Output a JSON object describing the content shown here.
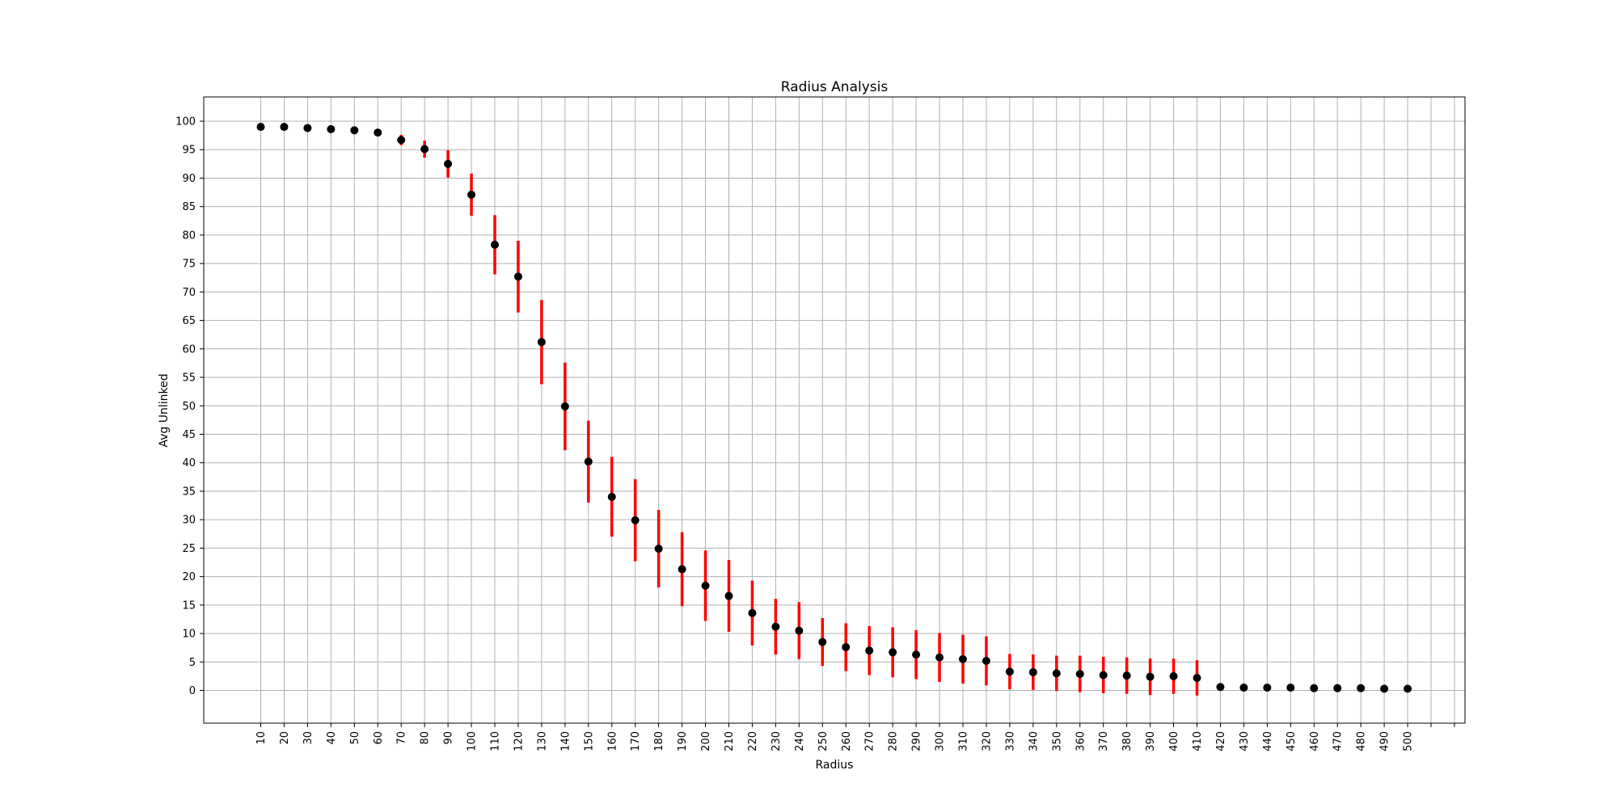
{
  "chart_data": {
    "type": "scatter",
    "title": "Radius Analysis",
    "xlabel": "Radius",
    "ylabel": "Avg Unlinked",
    "grid": true,
    "ylim": [
      -6,
      104
    ],
    "yticks": [
      0,
      5,
      10,
      15,
      20,
      25,
      30,
      35,
      40,
      45,
      50,
      55,
      60,
      65,
      70,
      75,
      80,
      85,
      90,
      95,
      100
    ],
    "x": [
      10,
      20,
      30,
      40,
      50,
      60,
      70,
      80,
      90,
      100,
      110,
      120,
      130,
      140,
      150,
      160,
      170,
      180,
      190,
      200,
      210,
      220,
      230,
      240,
      250,
      260,
      270,
      280,
      290,
      300,
      310,
      320,
      330,
      340,
      350,
      360,
      370,
      380,
      390,
      400,
      410,
      420,
      430,
      440,
      450,
      460,
      470,
      480,
      490,
      500
    ],
    "series": [
      {
        "values": [
          99.0,
          99.0,
          98.8,
          98.6,
          98.4,
          98.0,
          96.7,
          95.1,
          92.5,
          87.1,
          78.3,
          72.7,
          61.2,
          49.9,
          40.2,
          34.0,
          29.9,
          24.9,
          21.3,
          18.4,
          16.6,
          13.6,
          11.2,
          10.5,
          8.5,
          7.6,
          7.0,
          6.7,
          6.3,
          5.8,
          5.5,
          5.2,
          3.3,
          3.2,
          3.0,
          2.9,
          2.7,
          2.6,
          2.4,
          2.5,
          2.2,
          0.6,
          0.5,
          0.5,
          0.5,
          0.4,
          0.4,
          0.4,
          0.3,
          0.3
        ],
        "error": [
          0.3,
          0.3,
          0.3,
          0.4,
          0.5,
          0.6,
          0.9,
          1.5,
          2.4,
          3.7,
          5.2,
          6.3,
          7.4,
          7.7,
          7.2,
          7.0,
          7.2,
          6.8,
          6.5,
          6.2,
          6.3,
          5.7,
          4.9,
          5.0,
          4.2,
          4.2,
          4.3,
          4.4,
          4.3,
          4.3,
          4.3,
          4.3,
          3.1,
          3.1,
          3.1,
          3.2,
          3.2,
          3.2,
          3.2,
          3.1,
          3.1,
          0.0,
          0.0,
          0.0,
          0.0,
          0.0,
          0.0,
          0.0,
          0.0,
          0.0
        ],
        "color": "#000000",
        "error_color": "#ff0000"
      }
    ]
  }
}
